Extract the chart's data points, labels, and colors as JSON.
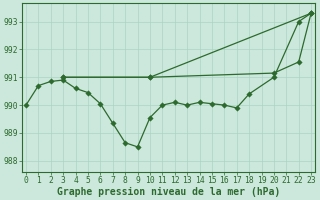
{
  "line1_x": [
    3,
    10,
    23
  ],
  "line1_y": [
    991.0,
    991.0,
    993.3
  ],
  "line2_x": [
    3,
    10,
    20,
    22,
    23
  ],
  "line2_y": [
    991.0,
    991.0,
    991.15,
    991.55,
    993.3
  ],
  "line3_x": [
    0,
    1,
    2,
    3,
    4,
    5,
    6,
    7,
    8,
    9,
    10,
    11,
    12,
    13,
    14,
    15,
    16,
    17,
    18,
    20,
    22,
    23
  ],
  "line3_y": [
    990.0,
    990.7,
    990.85,
    990.9,
    990.6,
    990.45,
    990.05,
    989.35,
    988.65,
    988.5,
    989.55,
    990.0,
    990.1,
    990.0,
    990.1,
    990.05,
    990.0,
    989.9,
    990.4,
    991.0,
    993.0,
    993.3
  ],
  "ylim": [
    987.6,
    993.65
  ],
  "xlim": [
    -0.3,
    23.3
  ],
  "yticks": [
    988,
    989,
    990,
    991,
    992,
    993
  ],
  "xticks": [
    0,
    1,
    2,
    3,
    4,
    5,
    6,
    7,
    8,
    9,
    10,
    11,
    12,
    13,
    14,
    15,
    16,
    17,
    18,
    19,
    20,
    21,
    22,
    23
  ],
  "line_color": "#2d6a2d",
  "bg_color": "#cce8dc",
  "grid_color": "#aad4c4",
  "xlabel": "Graphe pression niveau de la mer (hPa)",
  "xlabel_fontsize": 7.0,
  "tick_fontsize": 5.8,
  "marker_size": 2.8,
  "lw": 0.9
}
